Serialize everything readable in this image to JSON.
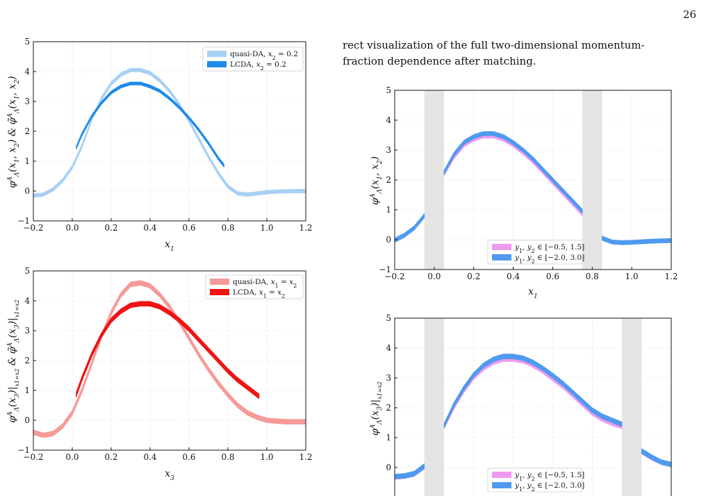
{
  "page_number": "26",
  "text": {
    "line1": "rect visualization of the full two-dimensional momentum-",
    "line2": "fraction dependence after matching."
  },
  "colors": {
    "light_blue": "#a7d0f5",
    "blue": "#1e8be8",
    "light_red": "#f59a98",
    "red": "#f01414",
    "magenta": "#ee9aee",
    "steel_blue": "#4f9aee",
    "gray_band": "#e5e5e5"
  },
  "chart_data": [
    {
      "type": "area",
      "xlabel": "x1",
      "ylabel": "φΛA(x1, x2) & φ̃ΛA(x1, x2)",
      "xlim": [
        -0.2,
        1.2
      ],
      "ylim": [
        -1,
        5
      ],
      "xticks": [
        "−0.2",
        "0.0",
        "0.2",
        "0.4",
        "0.6",
        "0.8",
        "1.0",
        "1.2"
      ],
      "yticks": [
        "−1",
        "0",
        "1",
        "2",
        "3",
        "4",
        "5"
      ],
      "grid": true,
      "legend_position": "top-right",
      "series": [
        {
          "name": "quasi-DA, x2 = 0.2",
          "color": "#a7d0f5",
          "width": 0.12,
          "x": [
            -0.2,
            -0.15,
            -0.1,
            -0.05,
            0.0,
            0.05,
            0.1,
            0.15,
            0.2,
            0.25,
            0.3,
            0.35,
            0.4,
            0.45,
            0.5,
            0.55,
            0.6,
            0.65,
            0.7,
            0.75,
            0.8,
            0.85,
            0.9,
            0.95,
            1.0,
            1.05,
            1.1,
            1.15,
            1.2
          ],
          "y": [
            -0.15,
            -0.12,
            0.05,
            0.35,
            0.8,
            1.5,
            2.4,
            3.1,
            3.6,
            3.9,
            4.05,
            4.05,
            3.95,
            3.7,
            3.35,
            2.9,
            2.35,
            1.75,
            1.15,
            0.6,
            0.15,
            -0.08,
            -0.12,
            -0.08,
            -0.04,
            -0.02,
            -0.01,
            0.0,
            0.0
          ]
        },
        {
          "name": "LCDA, x2 = 0.2",
          "color": "#1e8be8",
          "width": 0.1,
          "x": [
            0.02,
            0.05,
            0.1,
            0.15,
            0.2,
            0.25,
            0.3,
            0.35,
            0.4,
            0.45,
            0.5,
            0.55,
            0.6,
            0.65,
            0.7,
            0.75,
            0.78
          ],
          "y": [
            1.45,
            1.9,
            2.5,
            2.95,
            3.3,
            3.5,
            3.6,
            3.6,
            3.5,
            3.35,
            3.1,
            2.8,
            2.45,
            2.05,
            1.6,
            1.1,
            0.85
          ]
        }
      ]
    },
    {
      "type": "area",
      "xlabel": "x3",
      "ylabel": "φΛA(x3)|x1=x2 & φ̃ΛA(x3)|x1=x2",
      "xlim": [
        -0.2,
        1.2
      ],
      "ylim": [
        -1,
        5
      ],
      "xticks": [
        "−0.2",
        "0.0",
        "0.2",
        "0.4",
        "0.6",
        "0.8",
        "1.0",
        "1.2"
      ],
      "yticks": [
        "−1",
        "0",
        "1",
        "2",
        "3",
        "4",
        "5"
      ],
      "grid": true,
      "legend_position": "top-right",
      "series": [
        {
          "name": "quasi-DA, x1 = x2",
          "color": "#f59a98",
          "width": 0.16,
          "x": [
            -0.2,
            -0.15,
            -0.1,
            -0.05,
            0.0,
            0.05,
            0.1,
            0.15,
            0.2,
            0.25,
            0.3,
            0.35,
            0.4,
            0.45,
            0.5,
            0.55,
            0.6,
            0.65,
            0.7,
            0.75,
            0.8,
            0.85,
            0.9,
            0.95,
            1.0,
            1.05,
            1.1,
            1.15,
            1.2
          ],
          "y": [
            -0.4,
            -0.5,
            -0.45,
            -0.2,
            0.25,
            1.0,
            1.9,
            2.8,
            3.6,
            4.2,
            4.55,
            4.6,
            4.5,
            4.2,
            3.8,
            3.3,
            2.75,
            2.2,
            1.7,
            1.25,
            0.85,
            0.5,
            0.25,
            0.1,
            0.0,
            -0.03,
            -0.05,
            -0.05,
            -0.05
          ]
        },
        {
          "name": "LCDA, x1 = x2",
          "color": "#f01414",
          "width": 0.16,
          "x": [
            0.02,
            0.05,
            0.1,
            0.15,
            0.2,
            0.25,
            0.3,
            0.35,
            0.4,
            0.45,
            0.5,
            0.55,
            0.6,
            0.65,
            0.7,
            0.75,
            0.8,
            0.85,
            0.9,
            0.96
          ],
          "y": [
            0.85,
            1.4,
            2.2,
            2.85,
            3.35,
            3.65,
            3.85,
            3.9,
            3.9,
            3.8,
            3.6,
            3.35,
            3.05,
            2.7,
            2.35,
            2.0,
            1.65,
            1.35,
            1.1,
            0.8
          ]
        }
      ]
    },
    {
      "type": "area",
      "xlabel": "x1",
      "ylabel": "φΛA(x1, x2)",
      "xlim": [
        -0.2,
        1.2
      ],
      "ylim": [
        -1,
        5
      ],
      "xticks": [
        "−0.2",
        "0.0",
        "0.2",
        "0.4",
        "0.6",
        "0.8",
        "1.0",
        "1.2"
      ],
      "yticks": [
        "−1",
        "0",
        "1",
        "2",
        "3",
        "4",
        "5"
      ],
      "grid": true,
      "legend_position": "lower-center",
      "excluded_bands": [
        [
          -0.05,
          0.05
        ],
        [
          0.75,
          0.85
        ]
      ],
      "series": [
        {
          "name": "y1, y2 ∈ [−0.5, 1.5]",
          "color": "#ee9aee",
          "width": 0.1,
          "x": [
            -0.2,
            -0.15,
            -0.1,
            -0.05,
            0.05,
            0.1,
            0.15,
            0.2,
            0.25,
            0.3,
            0.35,
            0.4,
            0.45,
            0.5,
            0.55,
            0.6,
            0.65,
            0.7,
            0.75,
            0.85,
            0.9,
            0.95,
            1.0,
            1.05,
            1.1,
            1.15,
            1.2
          ],
          "y": [
            -0.02,
            0.15,
            0.4,
            0.8,
            2.2,
            2.75,
            3.15,
            3.35,
            3.45,
            3.45,
            3.35,
            3.15,
            2.9,
            2.6,
            2.25,
            1.9,
            1.55,
            1.2,
            0.85,
            0.05,
            -0.08,
            -0.1,
            -0.09,
            -0.07,
            -0.05,
            -0.04,
            -0.03
          ]
        },
        {
          "name": "y1, y2 ∈ [−2.0, 3.0]",
          "color": "#4f9aee",
          "width": 0.14,
          "x": [
            -0.2,
            -0.15,
            -0.1,
            -0.05,
            0.05,
            0.1,
            0.15,
            0.2,
            0.25,
            0.3,
            0.35,
            0.4,
            0.45,
            0.5,
            0.55,
            0.6,
            0.65,
            0.7,
            0.75,
            0.85,
            0.9,
            0.95,
            1.0,
            1.05,
            1.1,
            1.15,
            1.2
          ],
          "y": [
            -0.02,
            0.15,
            0.4,
            0.8,
            2.25,
            2.85,
            3.25,
            3.45,
            3.55,
            3.55,
            3.45,
            3.25,
            3.0,
            2.7,
            2.35,
            2.0,
            1.65,
            1.3,
            0.95,
            0.05,
            -0.08,
            -0.1,
            -0.09,
            -0.07,
            -0.05,
            -0.04,
            -0.03
          ]
        }
      ]
    },
    {
      "type": "area",
      "xlabel": "",
      "ylabel": "φΛA(x3)|x1=x2",
      "xlim": [
        -0.2,
        1.2
      ],
      "ylim": [
        -1,
        5
      ],
      "xticks": [],
      "yticks": [
        "0",
        "1",
        "2",
        "3",
        "4",
        "5"
      ],
      "grid": true,
      "legend_position": "lower-center",
      "excluded_bands": [
        [
          -0.05,
          0.05
        ],
        [
          0.95,
          1.05
        ]
      ],
      "series": [
        {
          "name": "y1, y2 ∈ [−0.5, 1.5]",
          "color": "#ee9aee",
          "width": 0.1,
          "x": [
            -0.2,
            -0.15,
            -0.1,
            -0.05,
            0.05,
            0.1,
            0.15,
            0.2,
            0.25,
            0.3,
            0.35,
            0.4,
            0.45,
            0.5,
            0.55,
            0.6,
            0.65,
            0.7,
            0.75,
            0.8,
            0.85,
            0.9,
            0.95,
            1.05,
            1.1,
            1.15,
            1.2
          ],
          "y": [
            -0.35,
            -0.32,
            -0.25,
            0.0,
            1.35,
            2.0,
            2.55,
            3.0,
            3.3,
            3.5,
            3.6,
            3.6,
            3.55,
            3.4,
            3.2,
            2.95,
            2.7,
            2.4,
            2.1,
            1.8,
            1.6,
            1.45,
            1.35,
            0.5,
            0.3,
            0.15,
            0.08
          ]
        },
        {
          "name": "y1, y2 ∈ [−2.0, 3.0]",
          "color": "#4f9aee",
          "width": 0.16,
          "x": [
            -0.2,
            -0.15,
            -0.1,
            -0.05,
            0.05,
            0.1,
            0.15,
            0.2,
            0.25,
            0.3,
            0.35,
            0.4,
            0.45,
            0.5,
            0.55,
            0.6,
            0.65,
            0.7,
            0.75,
            0.8,
            0.85,
            0.9,
            0.95,
            1.05,
            1.1,
            1.15,
            1.2
          ],
          "y": [
            -0.3,
            -0.28,
            -0.2,
            0.05,
            1.4,
            2.1,
            2.65,
            3.1,
            3.42,
            3.62,
            3.72,
            3.72,
            3.66,
            3.52,
            3.32,
            3.08,
            2.82,
            2.52,
            2.22,
            1.92,
            1.72,
            1.58,
            1.45,
            0.55,
            0.35,
            0.18,
            0.1
          ]
        }
      ]
    }
  ]
}
